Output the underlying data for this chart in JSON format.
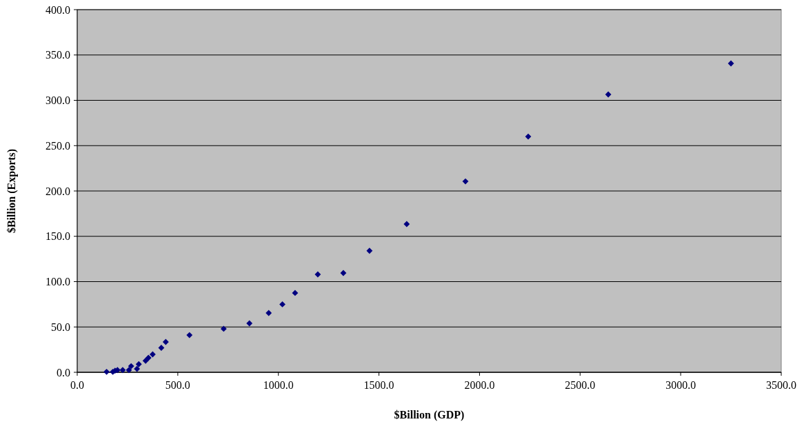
{
  "chart_data": {
    "type": "scatter",
    "xlabel": "$Billion (GDP)",
    "ylabel": "$Billion (Exports)",
    "x": [
      146,
      177,
      188,
      200,
      226,
      257,
      268,
      297,
      306,
      340,
      354,
      375,
      418,
      440,
      558,
      728,
      856,
      952,
      1020,
      1083,
      1196,
      1323,
      1453,
      1638,
      1930,
      2242,
      2640,
      3250
    ],
    "series": [
      {
        "color": "#000080",
        "values": [
          0.5,
          0.5,
          1.8,
          2.5,
          2.5,
          2.5,
          6.8,
          3.8,
          8.9,
          12.7,
          16,
          19.8,
          27,
          33.5,
          41,
          48,
          54,
          65.4,
          75,
          87.5,
          108,
          109.5,
          134,
          163.5,
          210.6,
          260,
          306.5,
          340.7
        ]
      }
    ],
    "xlim": [
      0,
      3500
    ],
    "xticks": [
      {
        "value": 0,
        "label": "0.0"
      },
      {
        "value": 500,
        "label": "500.0"
      },
      {
        "value": 1000,
        "label": "1000.0"
      },
      {
        "value": 1500,
        "label": "1500.0"
      },
      {
        "value": 2000,
        "label": "2000.0"
      },
      {
        "value": 2500,
        "label": "2500.0"
      },
      {
        "value": 3000,
        "label": "3000.0"
      },
      {
        "value": 3500,
        "label": "3500.0"
      }
    ],
    "ylim": [
      0,
      400
    ],
    "yticks": [
      {
        "value": 0,
        "label": "0.0"
      },
      {
        "value": 50,
        "label": "50.0"
      },
      {
        "value": 100,
        "label": "100.0"
      },
      {
        "value": 150,
        "label": "150.0"
      },
      {
        "value": 200,
        "label": "200.0"
      },
      {
        "value": 250,
        "label": "250.0"
      },
      {
        "value": 300,
        "label": "300.0"
      },
      {
        "value": 350,
        "label": "350.0"
      },
      {
        "value": 400,
        "label": "400.0"
      }
    ],
    "grid": "y",
    "marker": "diamond"
  }
}
